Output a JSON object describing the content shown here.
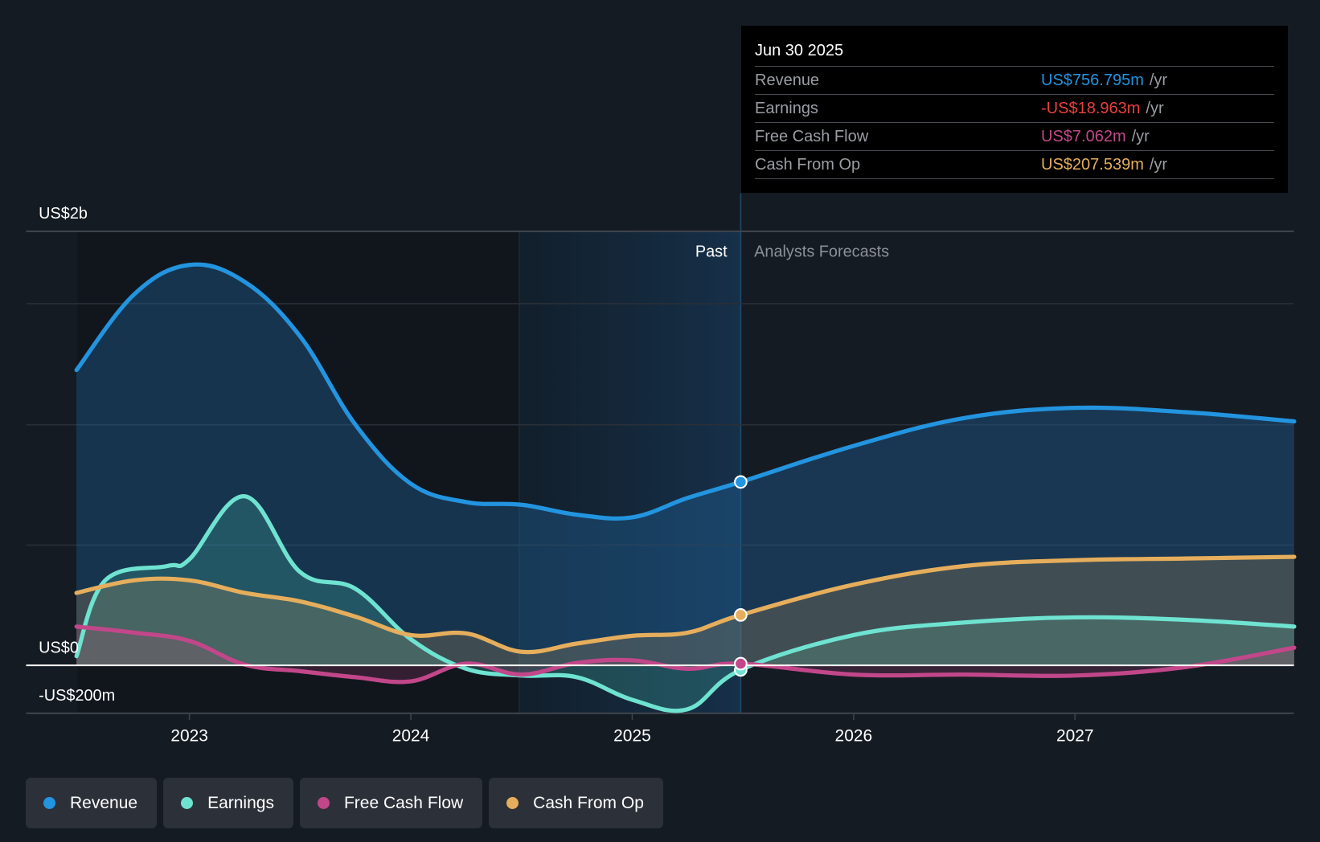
{
  "chart_data": {
    "type": "area",
    "title": "",
    "xlabel": "",
    "ylabel": "",
    "y_unit": "US$ millions",
    "y_tick_labels": [
      {
        "label": "US$2b",
        "value": 2000
      },
      {
        "label": "US$0",
        "value": 0
      },
      {
        "label": "-US$200m",
        "value": -200
      }
    ],
    "x_tick_labels": [
      "2023",
      "2024",
      "2025",
      "2026",
      "2027"
    ],
    "x_ticks": [
      2023,
      2024,
      2025,
      2026,
      2027
    ],
    "xlim": [
      2022.49,
      2027.99
    ],
    "ylim": [
      -200,
      2000
    ],
    "grid": true,
    "divider": {
      "x": 2025.49,
      "past_label": "Past",
      "forecast_label": "Analysts Forecasts"
    },
    "highlight_band": {
      "from": 2024.49,
      "to": 2025.49
    },
    "legend_position": "bottom-left",
    "series": [
      {
        "name": "Revenue",
        "color": "#2394df",
        "x": [
          2022.49,
          2022.75,
          2023.0,
          2023.25,
          2023.5,
          2023.75,
          2024.0,
          2024.25,
          2024.5,
          2024.75,
          2025.0,
          2025.25,
          2025.49,
          2026.0,
          2026.5,
          2027.0,
          2027.5,
          2027.99
        ],
        "values": [
          1219,
          1531,
          1653,
          1583,
          1358,
          993,
          750,
          674,
          663,
          622,
          611,
          691,
          757,
          906,
          1021,
          1063,
          1045,
          1007
        ]
      },
      {
        "name": "Earnings",
        "color": "#6fe3d1",
        "x": [
          2022.49,
          2022.62,
          2022.9,
          2023.0,
          2023.25,
          2023.5,
          2023.75,
          2024.0,
          2024.25,
          2024.5,
          2024.75,
          2025.0,
          2025.25,
          2025.49,
          2026.0,
          2026.5,
          2027.0,
          2027.5,
          2027.99
        ],
        "values": [
          38,
          351,
          410,
          438,
          698,
          385,
          316,
          108,
          -14,
          -42,
          -49,
          -142,
          -181,
          -19,
          125,
          177,
          198,
          188,
          160
        ]
      },
      {
        "name": "Free Cash Flow",
        "color": "#c2478a",
        "x": [
          2022.49,
          2022.75,
          2023.0,
          2023.25,
          2023.5,
          2023.75,
          2024.0,
          2024.25,
          2024.5,
          2024.75,
          2025.0,
          2025.25,
          2025.49,
          2026.0,
          2026.5,
          2027.0,
          2027.5,
          2027.99
        ],
        "values": [
          160,
          135,
          101,
          3,
          -24,
          -49,
          -66,
          7,
          -38,
          10,
          21,
          -14,
          7,
          -38,
          -38,
          -42,
          -7,
          73
        ]
      },
      {
        "name": "Cash From Op",
        "color": "#e6ae5c",
        "x": [
          2022.49,
          2022.75,
          2023.0,
          2023.25,
          2023.5,
          2023.75,
          2024.0,
          2024.25,
          2024.5,
          2024.75,
          2025.0,
          2025.25,
          2025.49,
          2026.0,
          2026.5,
          2027.0,
          2027.5,
          2027.99
        ],
        "values": [
          299,
          351,
          351,
          299,
          264,
          201,
          125,
          132,
          56,
          90,
          122,
          135,
          208,
          333,
          410,
          434,
          441,
          448
        ]
      }
    ],
    "markers_at": 2025.49
  },
  "tooltip": {
    "date": "Jun 30 2025",
    "unit": "/yr",
    "rows": [
      {
        "label": "Revenue",
        "value": "US$756.795m",
        "color": "#2394df"
      },
      {
        "label": "Earnings",
        "value": "-US$18.963m",
        "color": "#e8403f"
      },
      {
        "label": "Free Cash Flow",
        "value": "US$7.062m",
        "color": "#c2478a"
      },
      {
        "label": "Cash From Op",
        "value": "US$207.539m",
        "color": "#e6ae5c"
      }
    ]
  },
  "legend": [
    {
      "label": "Revenue",
      "color": "#2394df"
    },
    {
      "label": "Earnings",
      "color": "#6fe3d1"
    },
    {
      "label": "Free Cash Flow",
      "color": "#c2478a"
    },
    {
      "label": "Cash From Op",
      "color": "#e6ae5c"
    }
  ]
}
